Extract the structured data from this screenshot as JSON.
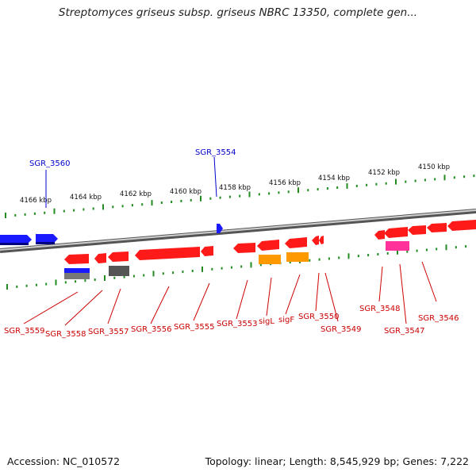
{
  "title": "Streptomyces griseus subsp. griseus NBRC 13350, complete gen...",
  "footer": {
    "accession": "Accession: NC_010572",
    "summary": "Topology: linear; Length: 8,545,929 bp; Genes: 7,222"
  },
  "colors": {
    "forward_gene": "#1a1aff",
    "reverse_gene": "#ff1a1a",
    "rna_gene": "#ff9900",
    "misc_gene": "#ff3399",
    "pseudo_gene": "#666666",
    "tick": "#228b22",
    "backbone": "#808080"
  },
  "kbp_labels": [
    "4166 kbp",
    "4164 kbp",
    "4162 kbp",
    "4160 kbp",
    "4158 kbp",
    "4156 kbp",
    "4154 kbp",
    "4152 kbp",
    "4150 kbp"
  ],
  "top_labels": [
    "SGR_3560",
    "SGR_3554"
  ],
  "bottom_labels": [
    "SGR_3559",
    "SGR_3558",
    "SGR_3557",
    "SGR_3556",
    "SGR_3555",
    "SGR_3553",
    "sigL",
    "sigF",
    "SGR_3550",
    "SGR_3549",
    "SGR_3548",
    "SGR_3547",
    "SGR_3546"
  ]
}
